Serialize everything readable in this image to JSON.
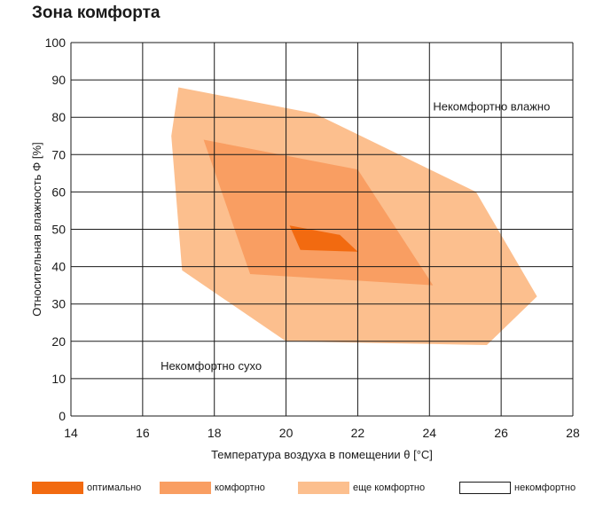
{
  "page_title": "Зона комфорта",
  "chart_data": {
    "type": "area",
    "xlabel": "Температура воздуха в помещении θ [°C]",
    "ylabel": "Относительная влажность Φ [%]",
    "xlim": [
      14,
      28
    ],
    "ylim": [
      0,
      100
    ],
    "xticks": [
      14,
      16,
      18,
      20,
      22,
      24,
      26,
      28
    ],
    "yticks": [
      0,
      10,
      20,
      30,
      40,
      50,
      60,
      70,
      80,
      90,
      100
    ],
    "grid": true,
    "legend_position": "bottom",
    "series": [
      {
        "name": "еще комфортно",
        "color": "#fcbf8e",
        "polygon": [
          [
            17.0,
            88
          ],
          [
            20.8,
            81
          ],
          [
            25.3,
            60
          ],
          [
            27.0,
            32
          ],
          [
            25.6,
            19
          ],
          [
            20.0,
            20
          ],
          [
            17.1,
            39
          ],
          [
            16.8,
            75
          ]
        ]
      },
      {
        "name": "комфортно",
        "color": "#f99e62",
        "polygon": [
          [
            17.7,
            74
          ],
          [
            22.0,
            66
          ],
          [
            24.1,
            35
          ],
          [
            19.0,
            38
          ]
        ]
      },
      {
        "name": "оптимально",
        "color": "#f26a10",
        "polygon": [
          [
            20.1,
            51
          ],
          [
            21.5,
            48.5
          ],
          [
            22.0,
            44
          ],
          [
            20.4,
            44.5
          ]
        ]
      },
      {
        "name": "некомфортно",
        "color": "#ffffff",
        "polygon": []
      }
    ],
    "annotations": [
      {
        "text": "Некомфортно влажно",
        "x": 24.1,
        "y": 83
      },
      {
        "text": "Некомфортно сухо",
        "x": 16.5,
        "y": 13.5
      }
    ]
  }
}
